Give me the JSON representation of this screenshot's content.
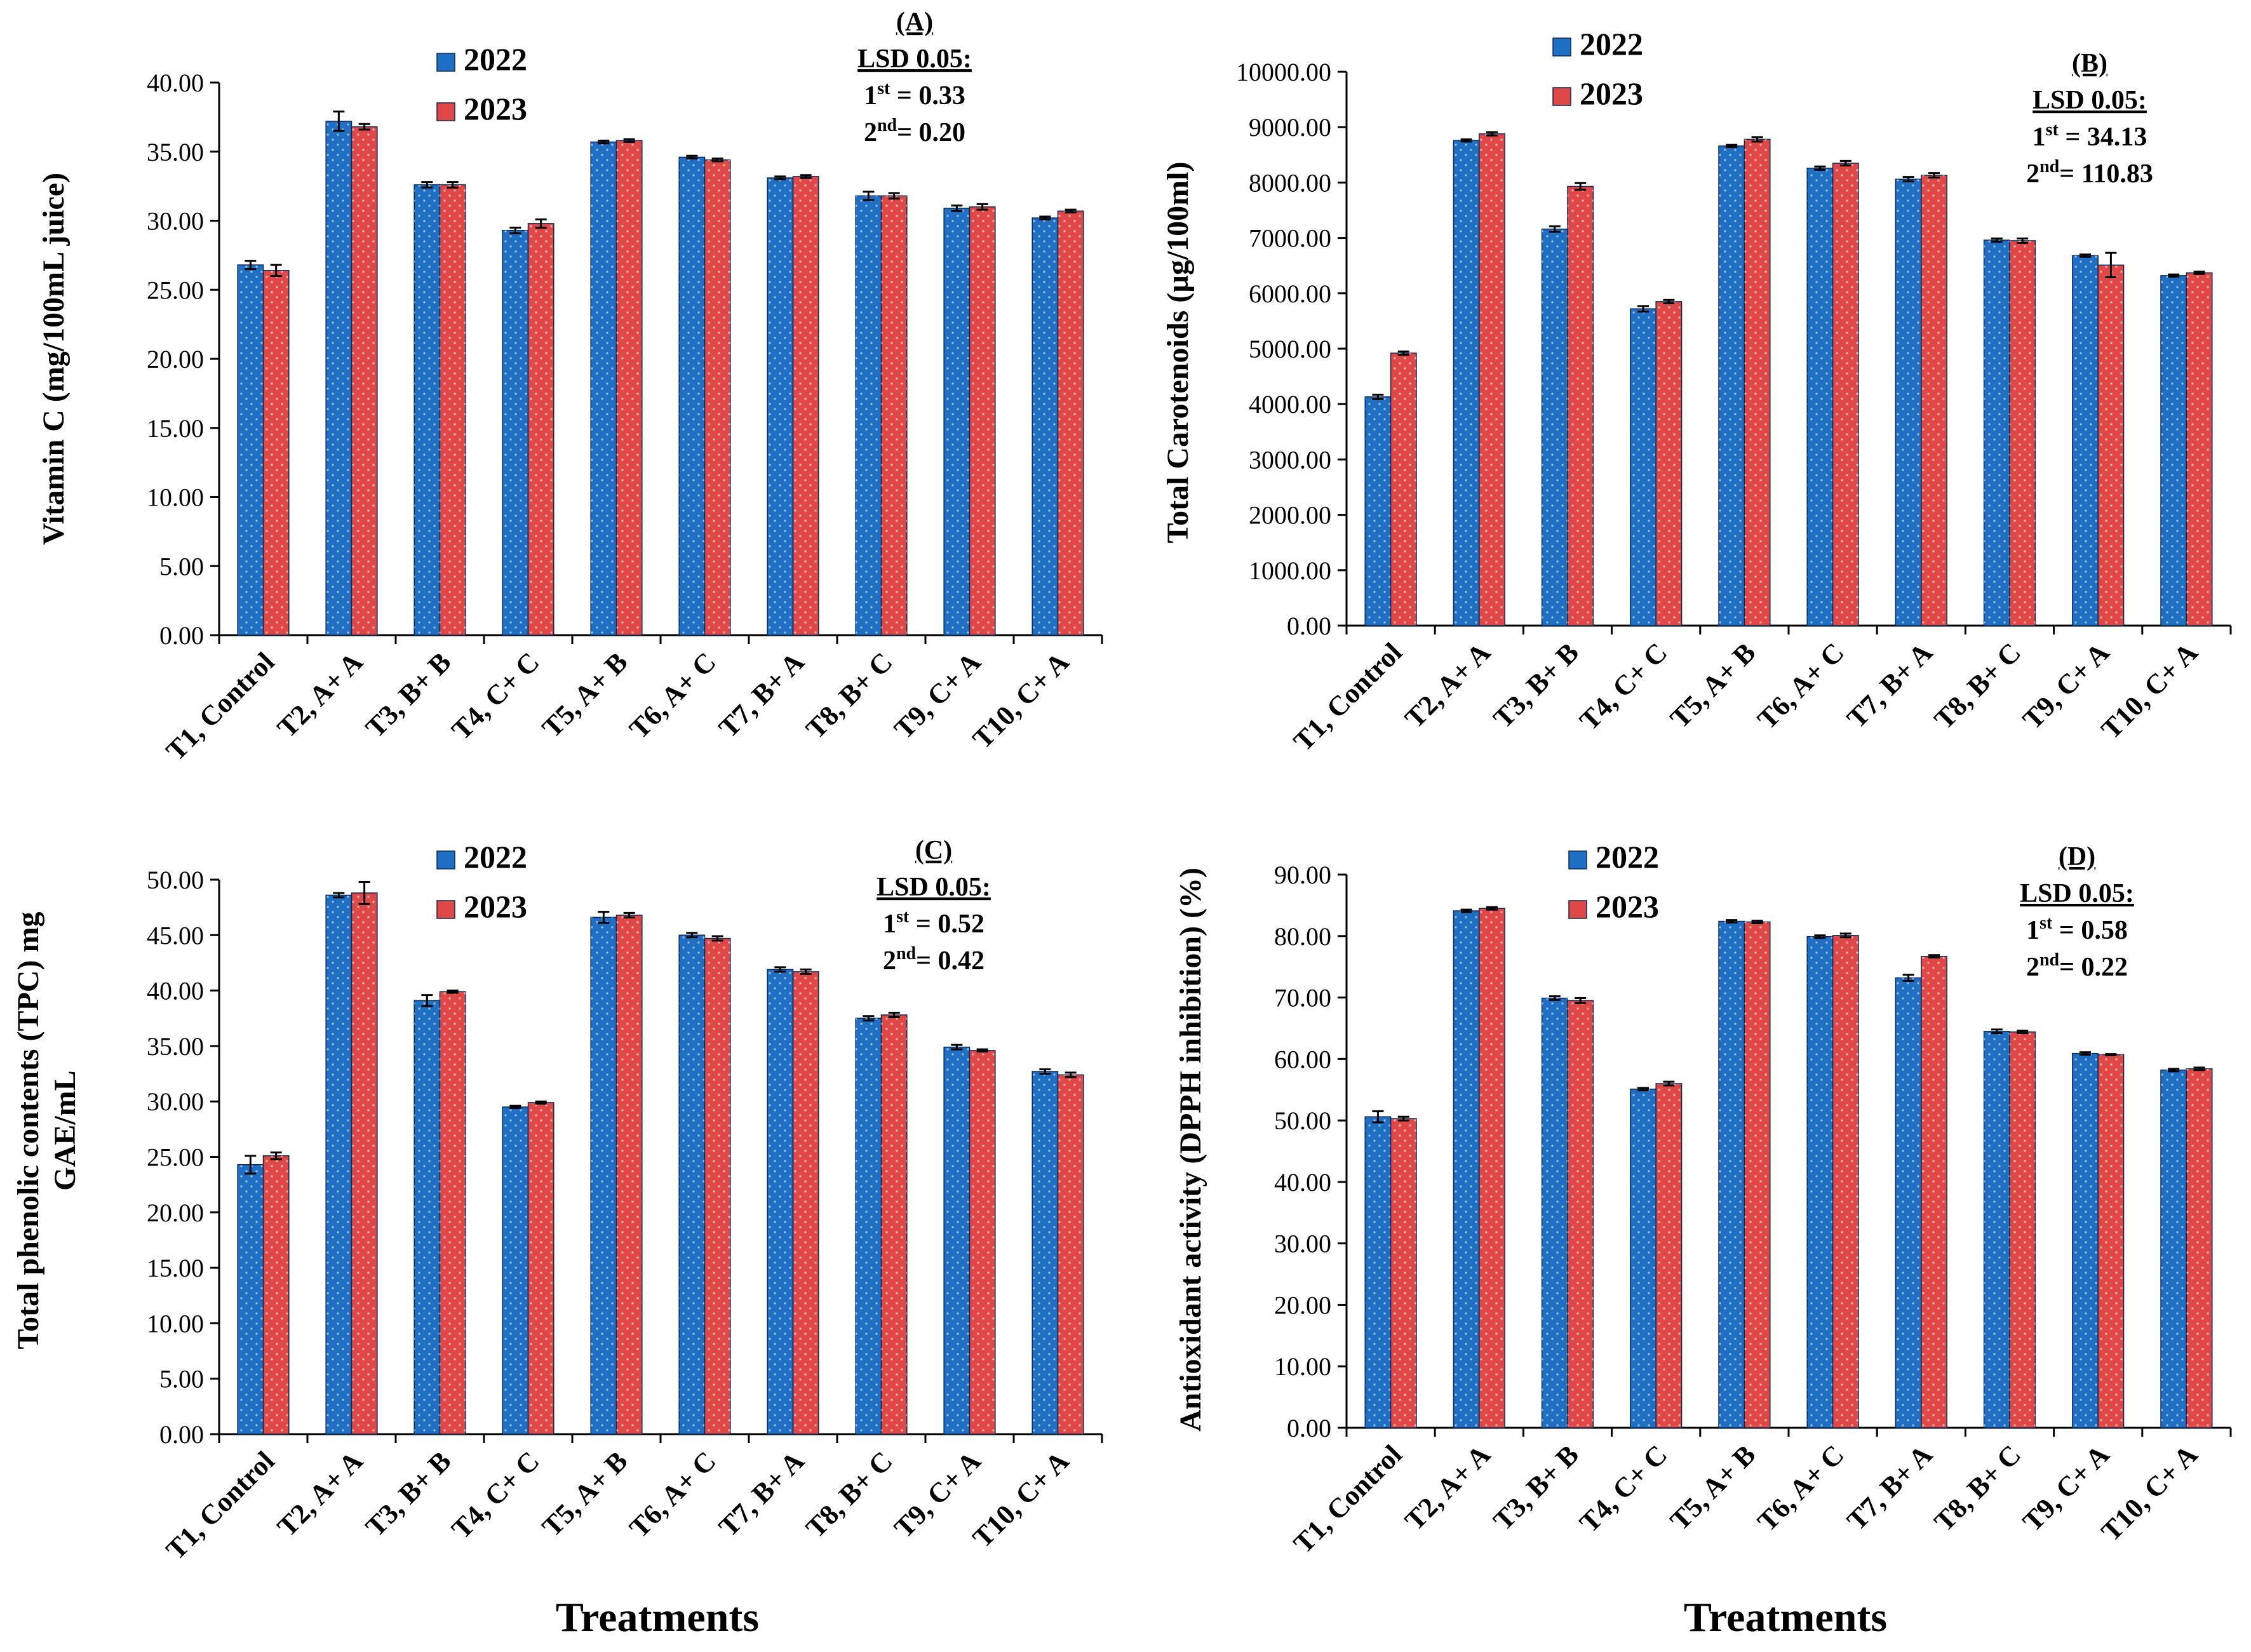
{
  "colors": {
    "series_2022": "#1f6fc4",
    "series_2023": "#e04848",
    "axis": "#000000"
  },
  "chart_data": [
    {
      "panel": "A",
      "type": "bar",
      "title": "(A)",
      "annotation": [
        "LSD 0.05:",
        "1st = 0.33",
        "2nd= 0.20"
      ],
      "ylabel": "Vitamin C (mg/100mL juice)",
      "xlabel": "",
      "ylim": [
        0,
        40
      ],
      "ytick_step": 5,
      "ytick_decimals": 2,
      "categories": [
        "T1, Control",
        "T2, A+ A",
        "T3, B+ B",
        "T4, C+ C",
        "T5, A+ B",
        "T6, A+ C",
        "T7, B+ A",
        "T8, B+ C",
        "T9, C+ A",
        "T10, C+ A"
      ],
      "series": [
        {
          "name": "2022",
          "values": [
            26.8,
            37.2,
            32.6,
            29.3,
            35.7,
            34.6,
            33.1,
            31.8,
            30.9,
            30.2
          ],
          "errors": [
            0.3,
            0.7,
            0.2,
            0.2,
            0.1,
            0.1,
            0.1,
            0.3,
            0.2,
            0.1
          ]
        },
        {
          "name": "2023",
          "values": [
            26.4,
            36.8,
            32.6,
            29.8,
            35.8,
            34.4,
            33.2,
            31.8,
            31.0,
            30.7
          ],
          "errors": [
            0.4,
            0.2,
            0.2,
            0.3,
            0.1,
            0.1,
            0.1,
            0.2,
            0.2,
            0.1
          ]
        }
      ]
    },
    {
      "panel": "B",
      "type": "bar",
      "title": "(B)",
      "annotation": [
        "LSD 0.05:",
        "1st = 34.13",
        "2nd= 110.83"
      ],
      "ylabel": "Total Carotenoids (µg/100ml)",
      "xlabel": "",
      "ylim": [
        0,
        10000
      ],
      "ytick_step": 1000,
      "ytick_decimals": 2,
      "categories": [
        "T1, Control",
        "T2, A+ A",
        "T3, B+ B",
        "T4, C+ C",
        "T5, A+ B",
        "T6, A+ C",
        "T7, B+ A",
        "T8, B+ C",
        "T9, C+ A",
        "T10, C+ A"
      ],
      "series": [
        {
          "name": "2022",
          "values": [
            4130,
            8760,
            7160,
            5720,
            8660,
            8260,
            8060,
            6960,
            6680,
            6320
          ],
          "errors": [
            40,
            20,
            50,
            50,
            20,
            30,
            40,
            30,
            20,
            20
          ]
        },
        {
          "name": "2023",
          "values": [
            4920,
            8880,
            7930,
            5850,
            8780,
            8350,
            8130,
            6950,
            6510,
            6370
          ],
          "errors": [
            30,
            30,
            60,
            30,
            40,
            40,
            40,
            40,
            220,
            20
          ]
        }
      ]
    },
    {
      "panel": "C",
      "type": "bar",
      "title": "(C)",
      "annotation": [
        "LSD 0.05:",
        "1st = 0.52",
        "2nd= 0.42"
      ],
      "ylabel": [
        "Total phenolic contents (TPC) mg",
        "GAE/mL"
      ],
      "xlabel": "Treatments",
      "ylim": [
        0,
        50
      ],
      "ytick_step": 5,
      "ytick_decimals": 2,
      "categories": [
        "T1, Control",
        "T2, A+ A",
        "T3, B+ B",
        "T4, C+ C",
        "T5, A+ B",
        "T6, A+ C",
        "T7, B+ A",
        "T8, B+ C",
        "T9, C+ A",
        "T10, C+ A"
      ],
      "series": [
        {
          "name": "2022",
          "values": [
            24.3,
            48.6,
            39.1,
            29.5,
            46.6,
            45.0,
            41.9,
            37.5,
            34.9,
            32.7
          ],
          "errors": [
            0.8,
            0.2,
            0.5,
            0.1,
            0.5,
            0.2,
            0.2,
            0.2,
            0.2,
            0.2
          ]
        },
        {
          "name": "2023",
          "values": [
            25.1,
            48.8,
            39.9,
            29.9,
            46.8,
            44.7,
            41.7,
            37.8,
            34.6,
            32.4
          ],
          "errors": [
            0.3,
            1.0,
            0.1,
            0.1,
            0.2,
            0.2,
            0.2,
            0.2,
            0.1,
            0.2
          ]
        }
      ]
    },
    {
      "panel": "D",
      "type": "bar",
      "title": "(D)",
      "annotation": [
        "LSD 0.05:",
        "1st = 0.58",
        "2nd= 0.22"
      ],
      "ylabel": "Antioxidant activity (DPPH inhibition) (%)",
      "xlabel": "Treatments",
      "ylim": [
        0,
        90
      ],
      "ytick_step": 10,
      "ytick_decimals": 2,
      "categories": [
        "T1, Control",
        "T2, A+ A",
        "T3, B+ B",
        "T4, C+ C",
        "T5, A+ B",
        "T6, A+ C",
        "T7, B+ A",
        "T8, B+ C",
        "T9, C+ A",
        "T10, C+ A"
      ],
      "series": [
        {
          "name": "2022",
          "values": [
            50.6,
            84.1,
            69.9,
            55.1,
            82.4,
            79.9,
            73.2,
            64.5,
            60.9,
            58.2
          ],
          "errors": [
            0.9,
            0.2,
            0.3,
            0.2,
            0.2,
            0.2,
            0.5,
            0.3,
            0.2,
            0.2
          ]
        },
        {
          "name": "2023",
          "values": [
            50.3,
            84.5,
            69.5,
            56.0,
            82.3,
            80.1,
            76.7,
            64.4,
            60.7,
            58.4
          ],
          "errors": [
            0.3,
            0.2,
            0.4,
            0.3,
            0.2,
            0.3,
            0.2,
            0.2,
            0.1,
            0.2
          ]
        }
      ]
    }
  ]
}
